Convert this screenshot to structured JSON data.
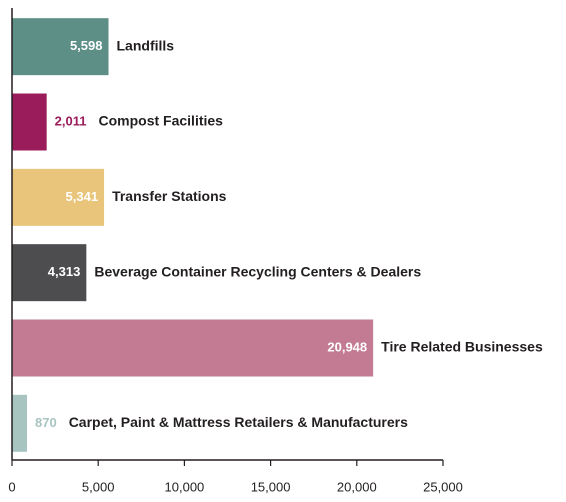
{
  "chart_data": {
    "type": "bar",
    "orientation": "horizontal",
    "categories": [
      "Landfills",
      "Compost Facilities",
      "Transfer Stations",
      "Beverage Container Recycling Centers & Dealers",
      "Tire Related Businesses",
      "Carpet, Paint & Mattress Retailers & Manufacturers"
    ],
    "values": [
      5598,
      2011,
      5341,
      4313,
      20948,
      870
    ],
    "value_labels": [
      "5,598",
      "2,011",
      "5,341",
      "4,313",
      "20,948",
      "870"
    ],
    "colors": [
      "#5e8f87",
      "#9b1c5a",
      "#e8c57a",
      "#4d4d4f",
      "#c27b92",
      "#a8c4c1"
    ],
    "xlim": [
      0,
      25000
    ],
    "xticks": [
      0,
      {
        "value": 5000,
        "label": "5,000"
      },
      {
        "value": 10000,
        "label": "10,000"
      },
      {
        "value": 15000,
        "label": "15,000"
      },
      {
        "value": 20000,
        "label": "20,000"
      },
      {
        "value": 25000,
        "label": "25,000"
      }
    ],
    "grid": false
  }
}
